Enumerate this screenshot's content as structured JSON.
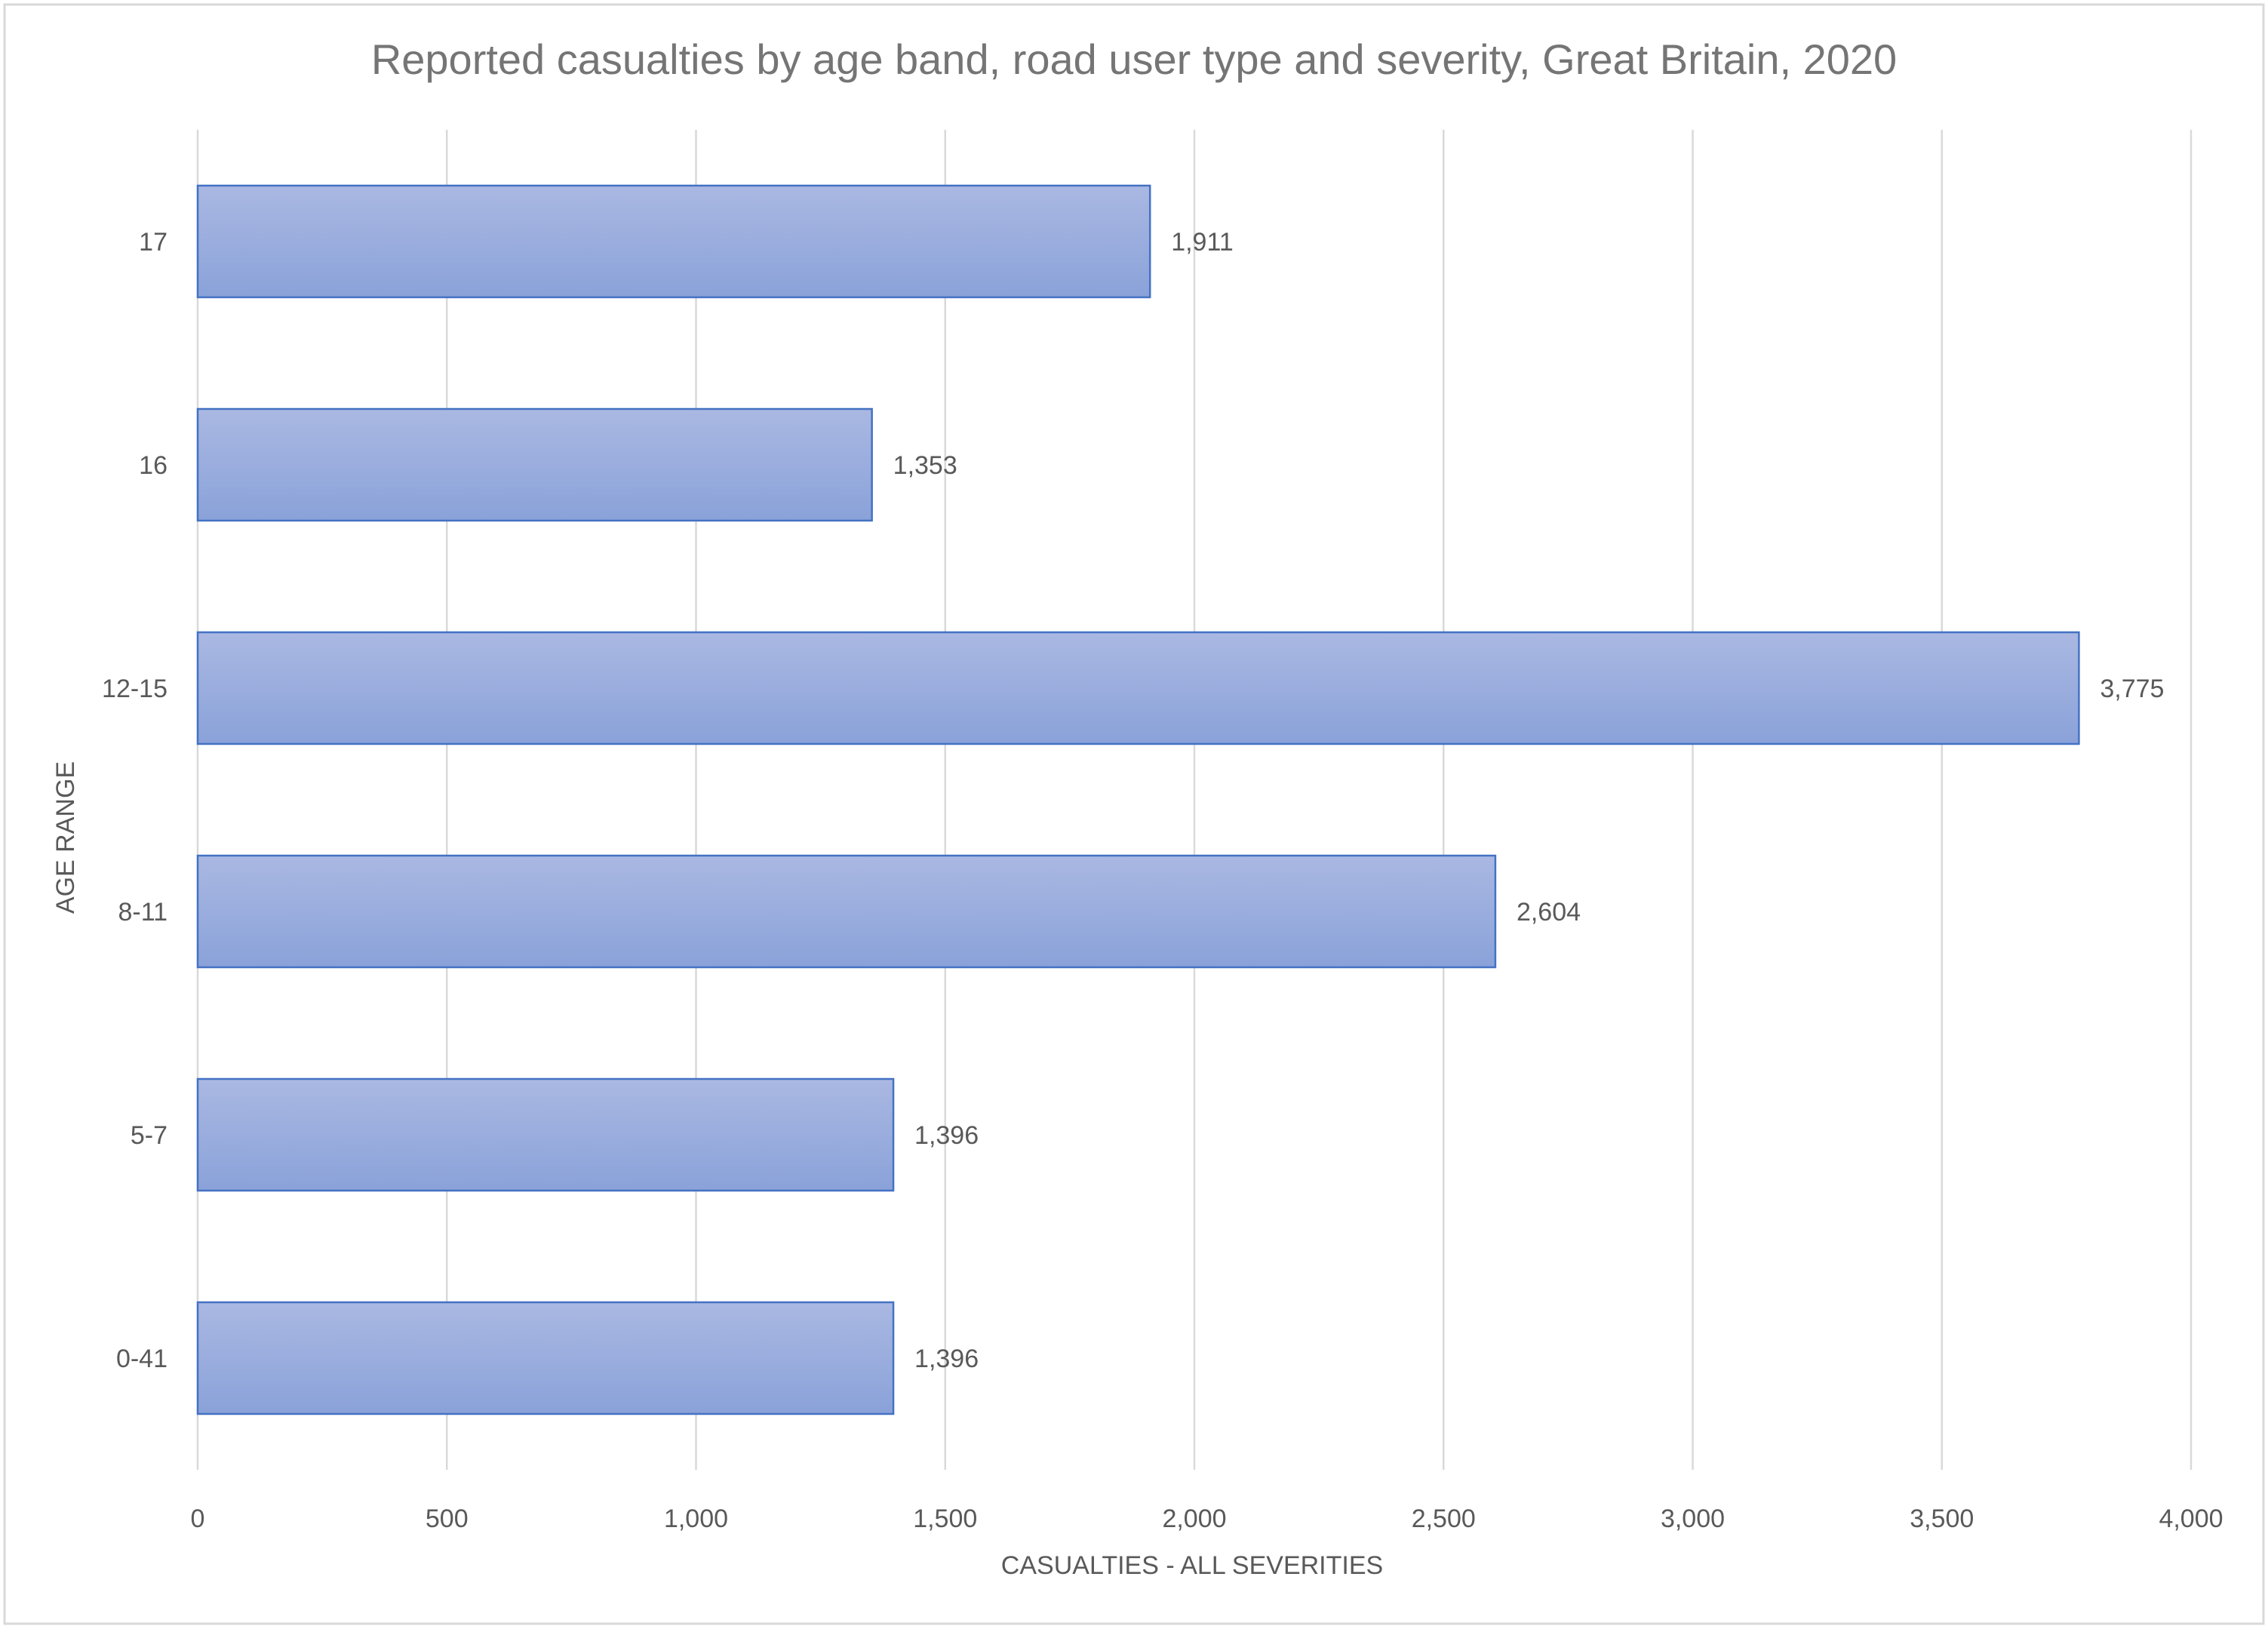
{
  "chart_data": {
    "type": "bar",
    "orientation": "horizontal",
    "title": "Reported casualties by age band, road user type and severity, Great Britain, 2020",
    "xlabel": "CASUALTIES - ALL SEVERITIES",
    "ylabel": "AGE RANGE",
    "categories": [
      "17",
      "16",
      "12-15",
      "8-11",
      "5-7",
      "0-41"
    ],
    "values": [
      1911,
      1353,
      3775,
      2604,
      1396,
      1396
    ],
    "value_labels": [
      "1,911",
      "1,353",
      "3,775",
      "2,604",
      "1,396",
      "1,396"
    ],
    "xlim": [
      0,
      4000
    ],
    "xticks": [
      0,
      500,
      1000,
      1500,
      2000,
      2500,
      3000,
      3500,
      4000
    ],
    "xtick_labels": [
      "0",
      "500",
      "1,000",
      "1,500",
      "2,000",
      "2,500",
      "3,000",
      "3,500",
      "4,000"
    ],
    "grid": true,
    "legend": "none"
  },
  "colors": {
    "bar_top": "#aab8e2",
    "bar_bottom": "#8aa2d9",
    "bar_border": "#4472c4",
    "grid": "#d9d9d9",
    "text": "#595959",
    "title": "#757575",
    "frame": "#d9d9d9"
  }
}
